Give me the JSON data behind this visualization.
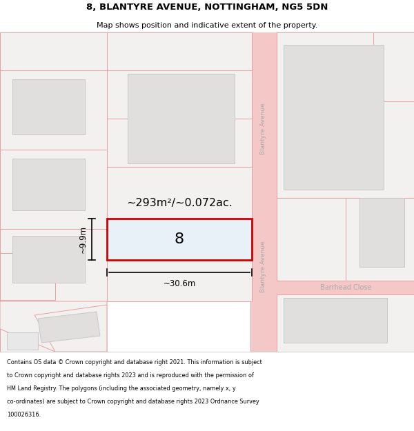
{
  "title": "8, BLANTYRE AVENUE, NOTTINGHAM, NG5 5DN",
  "subtitle": "Map shows position and indicative extent of the property.",
  "bg_color": "#ffffff",
  "map_bg": "#f8f7f5",
  "road_color": "#f5c8c8",
  "road_line_color": "#e8a0a0",
  "building_fill": "#e0dfde",
  "building_edge": "#c8c8c8",
  "parcel_fill": "#f2f1ef",
  "parcel_edge": "#e8a0a0",
  "highlight_fill": "#e8f0f8",
  "highlight_edge": "#cc0000",
  "street_label_color": "#aaaaaa",
  "area_label": "~293m²/~0.072ac.",
  "width_label": "~30.6m",
  "height_label": "~9.9m",
  "plot_number": "8",
  "street_name_top": "Blantyre Avenue",
  "street_name_bottom": "Blantyre Avenue",
  "street_name_close": "Barrhead Close",
  "footer_lines": [
    "Contains OS data © Crown copyright and database right 2021. This information is subject",
    "to Crown copyright and database rights 2023 and is reproduced with the permission of",
    "HM Land Registry. The polygons (including the associated geometry, namely x, y",
    "co-ordinates) are subject to Crown copyright and database rights 2023 Ordnance Survey",
    "100026316."
  ]
}
